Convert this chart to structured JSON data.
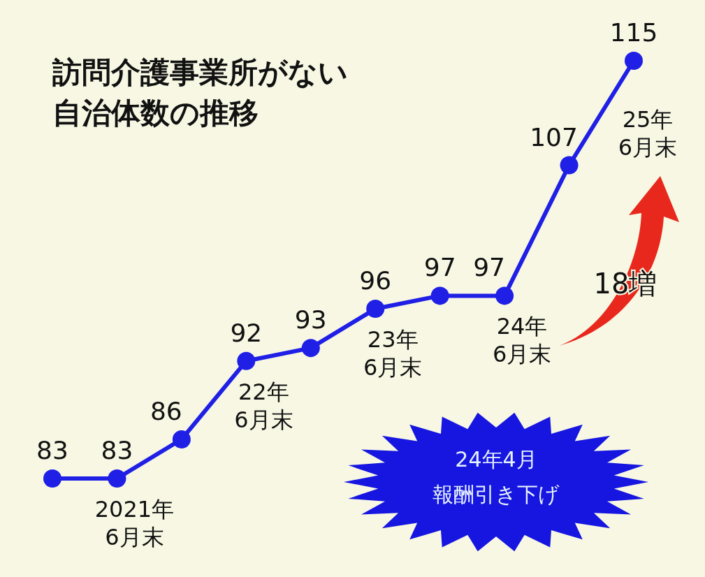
{
  "chart_data": {
    "type": "line",
    "title": "訪問介護事業所がない",
    "subtitle": "自治体数の推移",
    "categories": [
      null,
      "2021年\n6月末",
      null,
      "22年\n6月末",
      null,
      "23年\n6月末",
      null,
      "24年\n6月末",
      null,
      "25年\n6月末"
    ],
    "values": [
      83,
      83,
      86,
      92,
      93,
      96,
      97,
      97,
      107,
      115
    ],
    "color": "#1f1fe6",
    "marker": "circle",
    "data_labels": true,
    "annotations": [
      "18増",
      "24年4月",
      "報酬引き下げ"
    ]
  }
}
